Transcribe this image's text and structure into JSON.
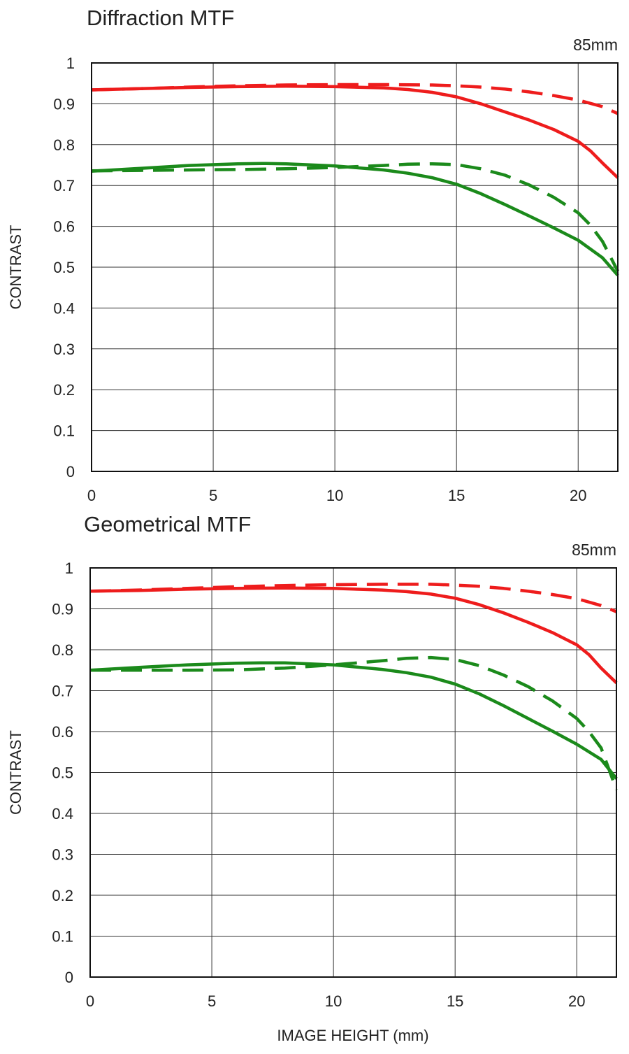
{
  "xlabel": "IMAGE HEIGHT (mm)",
  "colors": {
    "sagittal_red": "#ee1c1c",
    "meridional_green": "#1b8a1b"
  },
  "chart_data": [
    {
      "type": "line",
      "title": "Diffraction MTF",
      "annotation": "85mm",
      "xlabel": "",
      "ylabel": "CONTRAST",
      "xlim": [
        0,
        21.63
      ],
      "ylim": [
        0,
        1
      ],
      "xticks": [
        "0",
        "5",
        "10",
        "15",
        "20"
      ],
      "yticks": [
        "0",
        "0.1",
        "0.2",
        "0.3",
        "0.4",
        "0.5",
        "0.6",
        "0.7",
        "0.8",
        "0.9",
        "1"
      ],
      "grid": true,
      "series": [
        {
          "color": "#ee1c1c",
          "style": "solid",
          "x": [
            0,
            2,
            4,
            6,
            8,
            10,
            12,
            13,
            14,
            15,
            16,
            17,
            18,
            19,
            20,
            20.5,
            21,
            21.63
          ],
          "y": [
            0.934,
            0.937,
            0.94,
            0.942,
            0.943,
            0.942,
            0.939,
            0.935,
            0.928,
            0.917,
            0.9,
            0.88,
            0.86,
            0.837,
            0.808,
            0.785,
            0.755,
            0.719
          ]
        },
        {
          "color": "#ee1c1c",
          "style": "dashed",
          "x": [
            0,
            2,
            4,
            6,
            8,
            10,
            12,
            14,
            15,
            16,
            17,
            18,
            19,
            20,
            21,
            21.63
          ],
          "y": [
            0.934,
            0.937,
            0.941,
            0.944,
            0.946,
            0.947,
            0.947,
            0.946,
            0.944,
            0.941,
            0.936,
            0.929,
            0.92,
            0.909,
            0.893,
            0.876
          ]
        },
        {
          "color": "#1b8a1b",
          "style": "solid",
          "x": [
            0,
            2,
            4,
            6,
            7,
            8,
            10,
            12,
            13,
            14,
            15,
            16,
            17,
            18,
            19,
            20,
            21,
            21.63
          ],
          "y": [
            0.735,
            0.742,
            0.749,
            0.753,
            0.754,
            0.753,
            0.748,
            0.738,
            0.73,
            0.719,
            0.703,
            0.68,
            0.653,
            0.625,
            0.596,
            0.566,
            0.523,
            0.48
          ]
        },
        {
          "color": "#1b8a1b",
          "style": "dashed",
          "x": [
            0,
            2,
            4,
            6,
            8,
            10,
            12,
            13,
            14,
            15,
            16,
            17,
            18,
            19,
            20,
            20.5,
            21,
            21.63
          ],
          "y": [
            0.736,
            0.737,
            0.738,
            0.739,
            0.741,
            0.744,
            0.749,
            0.752,
            0.753,
            0.751,
            0.741,
            0.725,
            0.701,
            0.671,
            0.633,
            0.603,
            0.563,
            0.49
          ]
        }
      ]
    },
    {
      "type": "line",
      "title": "Geometrical MTF",
      "annotation": "85mm",
      "xlabel": "IMAGE HEIGHT (mm)",
      "ylabel": "CONTRAST",
      "xlim": [
        0,
        21.63
      ],
      "ylim": [
        0,
        1
      ],
      "xticks": [
        "0",
        "5",
        "10",
        "15",
        "20"
      ],
      "yticks": [
        "0",
        "0.1",
        "0.2",
        "0.3",
        "0.4",
        "0.5",
        "0.6",
        "0.7",
        "0.8",
        "0.9",
        "1"
      ],
      "grid": true,
      "series": [
        {
          "color": "#ee1c1c",
          "style": "solid",
          "x": [
            0,
            2,
            4,
            6,
            8,
            10,
            12,
            13,
            14,
            15,
            16,
            17,
            18,
            19,
            20,
            20.5,
            21,
            21.63
          ],
          "y": [
            0.943,
            0.945,
            0.948,
            0.95,
            0.951,
            0.95,
            0.946,
            0.942,
            0.936,
            0.926,
            0.91,
            0.89,
            0.867,
            0.842,
            0.812,
            0.788,
            0.755,
            0.719
          ]
        },
        {
          "color": "#ee1c1c",
          "style": "dashed",
          "x": [
            0,
            2,
            4,
            6,
            8,
            10,
            12,
            14,
            15,
            16,
            17,
            18,
            19,
            20,
            21,
            21.63
          ],
          "y": [
            0.943,
            0.946,
            0.95,
            0.954,
            0.957,
            0.959,
            0.96,
            0.96,
            0.958,
            0.955,
            0.95,
            0.943,
            0.935,
            0.925,
            0.908,
            0.893
          ]
        },
        {
          "color": "#1b8a1b",
          "style": "solid",
          "x": [
            0,
            2,
            4,
            6,
            7,
            8,
            10,
            12,
            13,
            14,
            15,
            16,
            17,
            18,
            19,
            20,
            21,
            21.63
          ],
          "y": [
            0.75,
            0.757,
            0.763,
            0.767,
            0.768,
            0.768,
            0.763,
            0.752,
            0.744,
            0.733,
            0.716,
            0.692,
            0.663,
            0.632,
            0.601,
            0.569,
            0.532,
            0.485
          ]
        },
        {
          "color": "#1b8a1b",
          "style": "dashed",
          "x": [
            0,
            2,
            4,
            6,
            8,
            10,
            12,
            13,
            14,
            15,
            16,
            17,
            18,
            19,
            20,
            20.5,
            21,
            21.63
          ],
          "y": [
            0.75,
            0.75,
            0.75,
            0.751,
            0.755,
            0.763,
            0.773,
            0.779,
            0.781,
            0.776,
            0.761,
            0.738,
            0.71,
            0.675,
            0.632,
            0.6,
            0.56,
            0.458
          ]
        }
      ]
    }
  ]
}
